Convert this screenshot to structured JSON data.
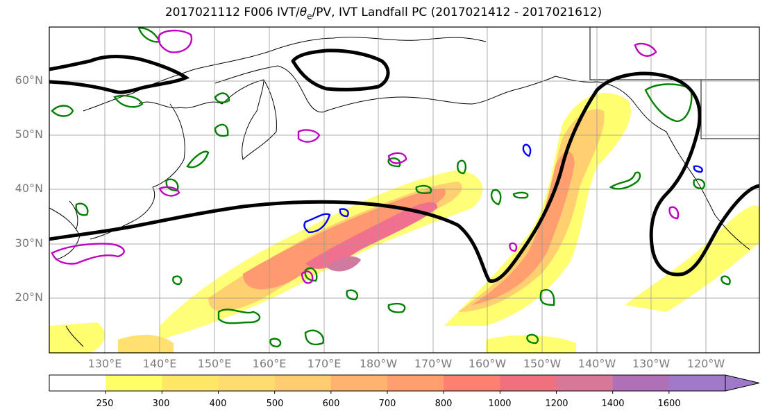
{
  "title": {
    "prefix": "2017021112 F006 IVT/",
    "theta_symbol": "θ",
    "theta_sub": "e",
    "suffix": "/PV, IVT Landfall PC (2017021412 - 2017021612)"
  },
  "map": {
    "lat_labels": [
      "60°N",
      "50°N",
      "40°N",
      "30°N",
      "20°N"
    ],
    "lon_labels": [
      "130°E",
      "140°E",
      "150°E",
      "160°E",
      "170°E",
      "180°W",
      "170°W",
      "160°W",
      "150°W",
      "140°W",
      "130°W",
      "120°W"
    ],
    "grid": true,
    "colors": {
      "landfall_pc_contour": "#000000",
      "theta_e_contour": "#008000",
      "pv_contour_magenta": "#c000c0",
      "pv_contour_blue": "#0000ff",
      "coastline": "#000000"
    }
  },
  "colorbar": {
    "tick_labels": [
      "250",
      "300",
      "400",
      "500",
      "600",
      "700",
      "800",
      "1000",
      "1200",
      "1400",
      "1600"
    ],
    "colors": [
      "#ffffff",
      "#ffff66",
      "#ffe866",
      "#ffdc6e",
      "#ffcc70",
      "#ffb36e",
      "#ff9f70",
      "#ff8070",
      "#f07080",
      "#d77898",
      "#b070b8",
      "#a07ac8"
    ],
    "extend": "max"
  }
}
